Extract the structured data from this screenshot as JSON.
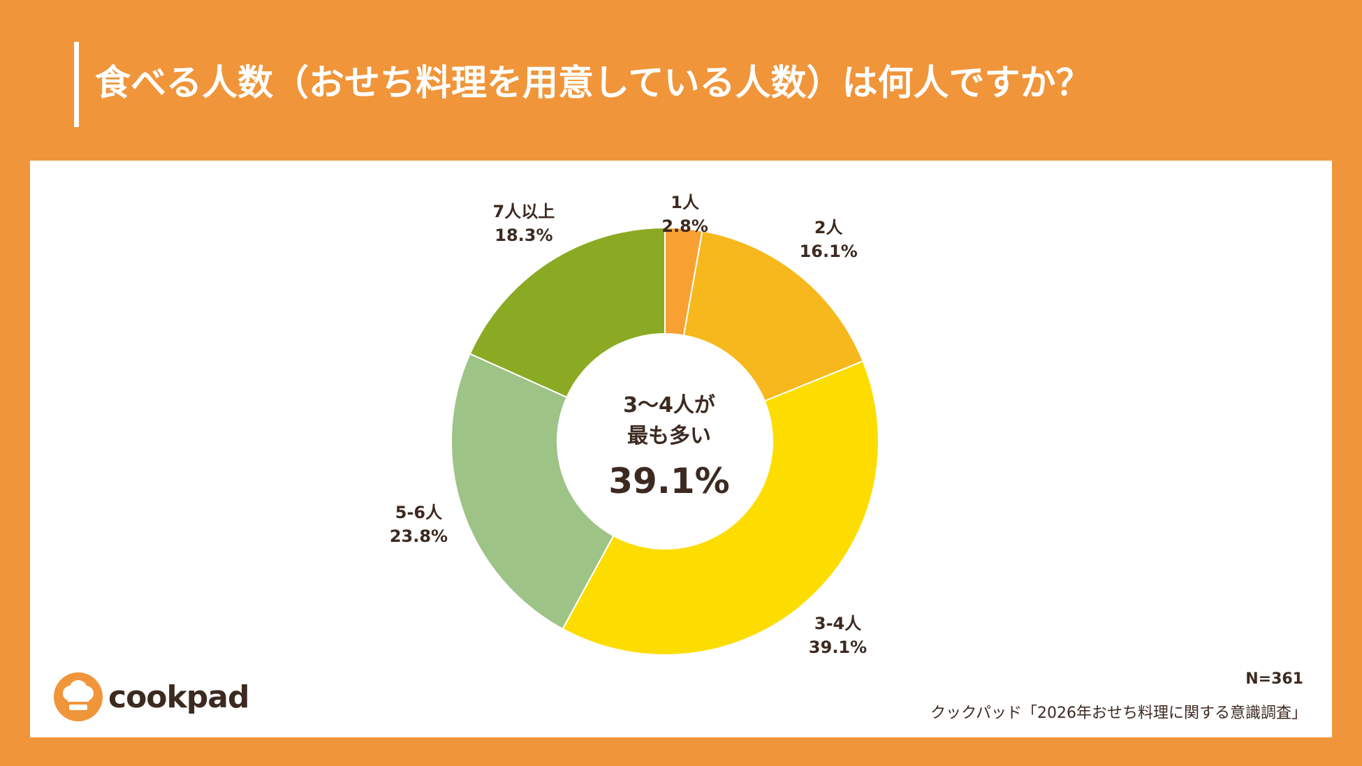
{
  "title": "食べる人数（おせち料理を用意している人数）は何人ですか？",
  "chart_data": {
    "type": "pie",
    "title": "食べる人数（おせち料理を用意している人数）は何人ですか？",
    "labels": [
      "1人",
      "2人",
      "3-4人",
      "5-6人",
      "7人以上"
    ],
    "values": [
      2.8,
      16.1,
      39.1,
      23.8,
      18.3
    ],
    "value_labels": [
      "2.8%",
      "16.1%",
      "39.1%",
      "23.8%",
      "18.3%"
    ],
    "colors": [
      "#F9A033",
      "#F6B81C",
      "#FDDD00",
      "#9DC386",
      "#8BAA24"
    ],
    "donut": true,
    "center_annotation": {
      "line1": "3〜4人が",
      "line2": "最も多い",
      "value": "39.1%"
    }
  },
  "sample_size": "N=361",
  "source": "クックパッド「2026年おせち料理に関する意識調査」",
  "logo": {
    "text": "cookpad",
    "icon": "chef-hat-icon"
  },
  "colors": {
    "background": "#F0953A",
    "panel": "#FFFFFF",
    "text": "#3C2A21"
  }
}
